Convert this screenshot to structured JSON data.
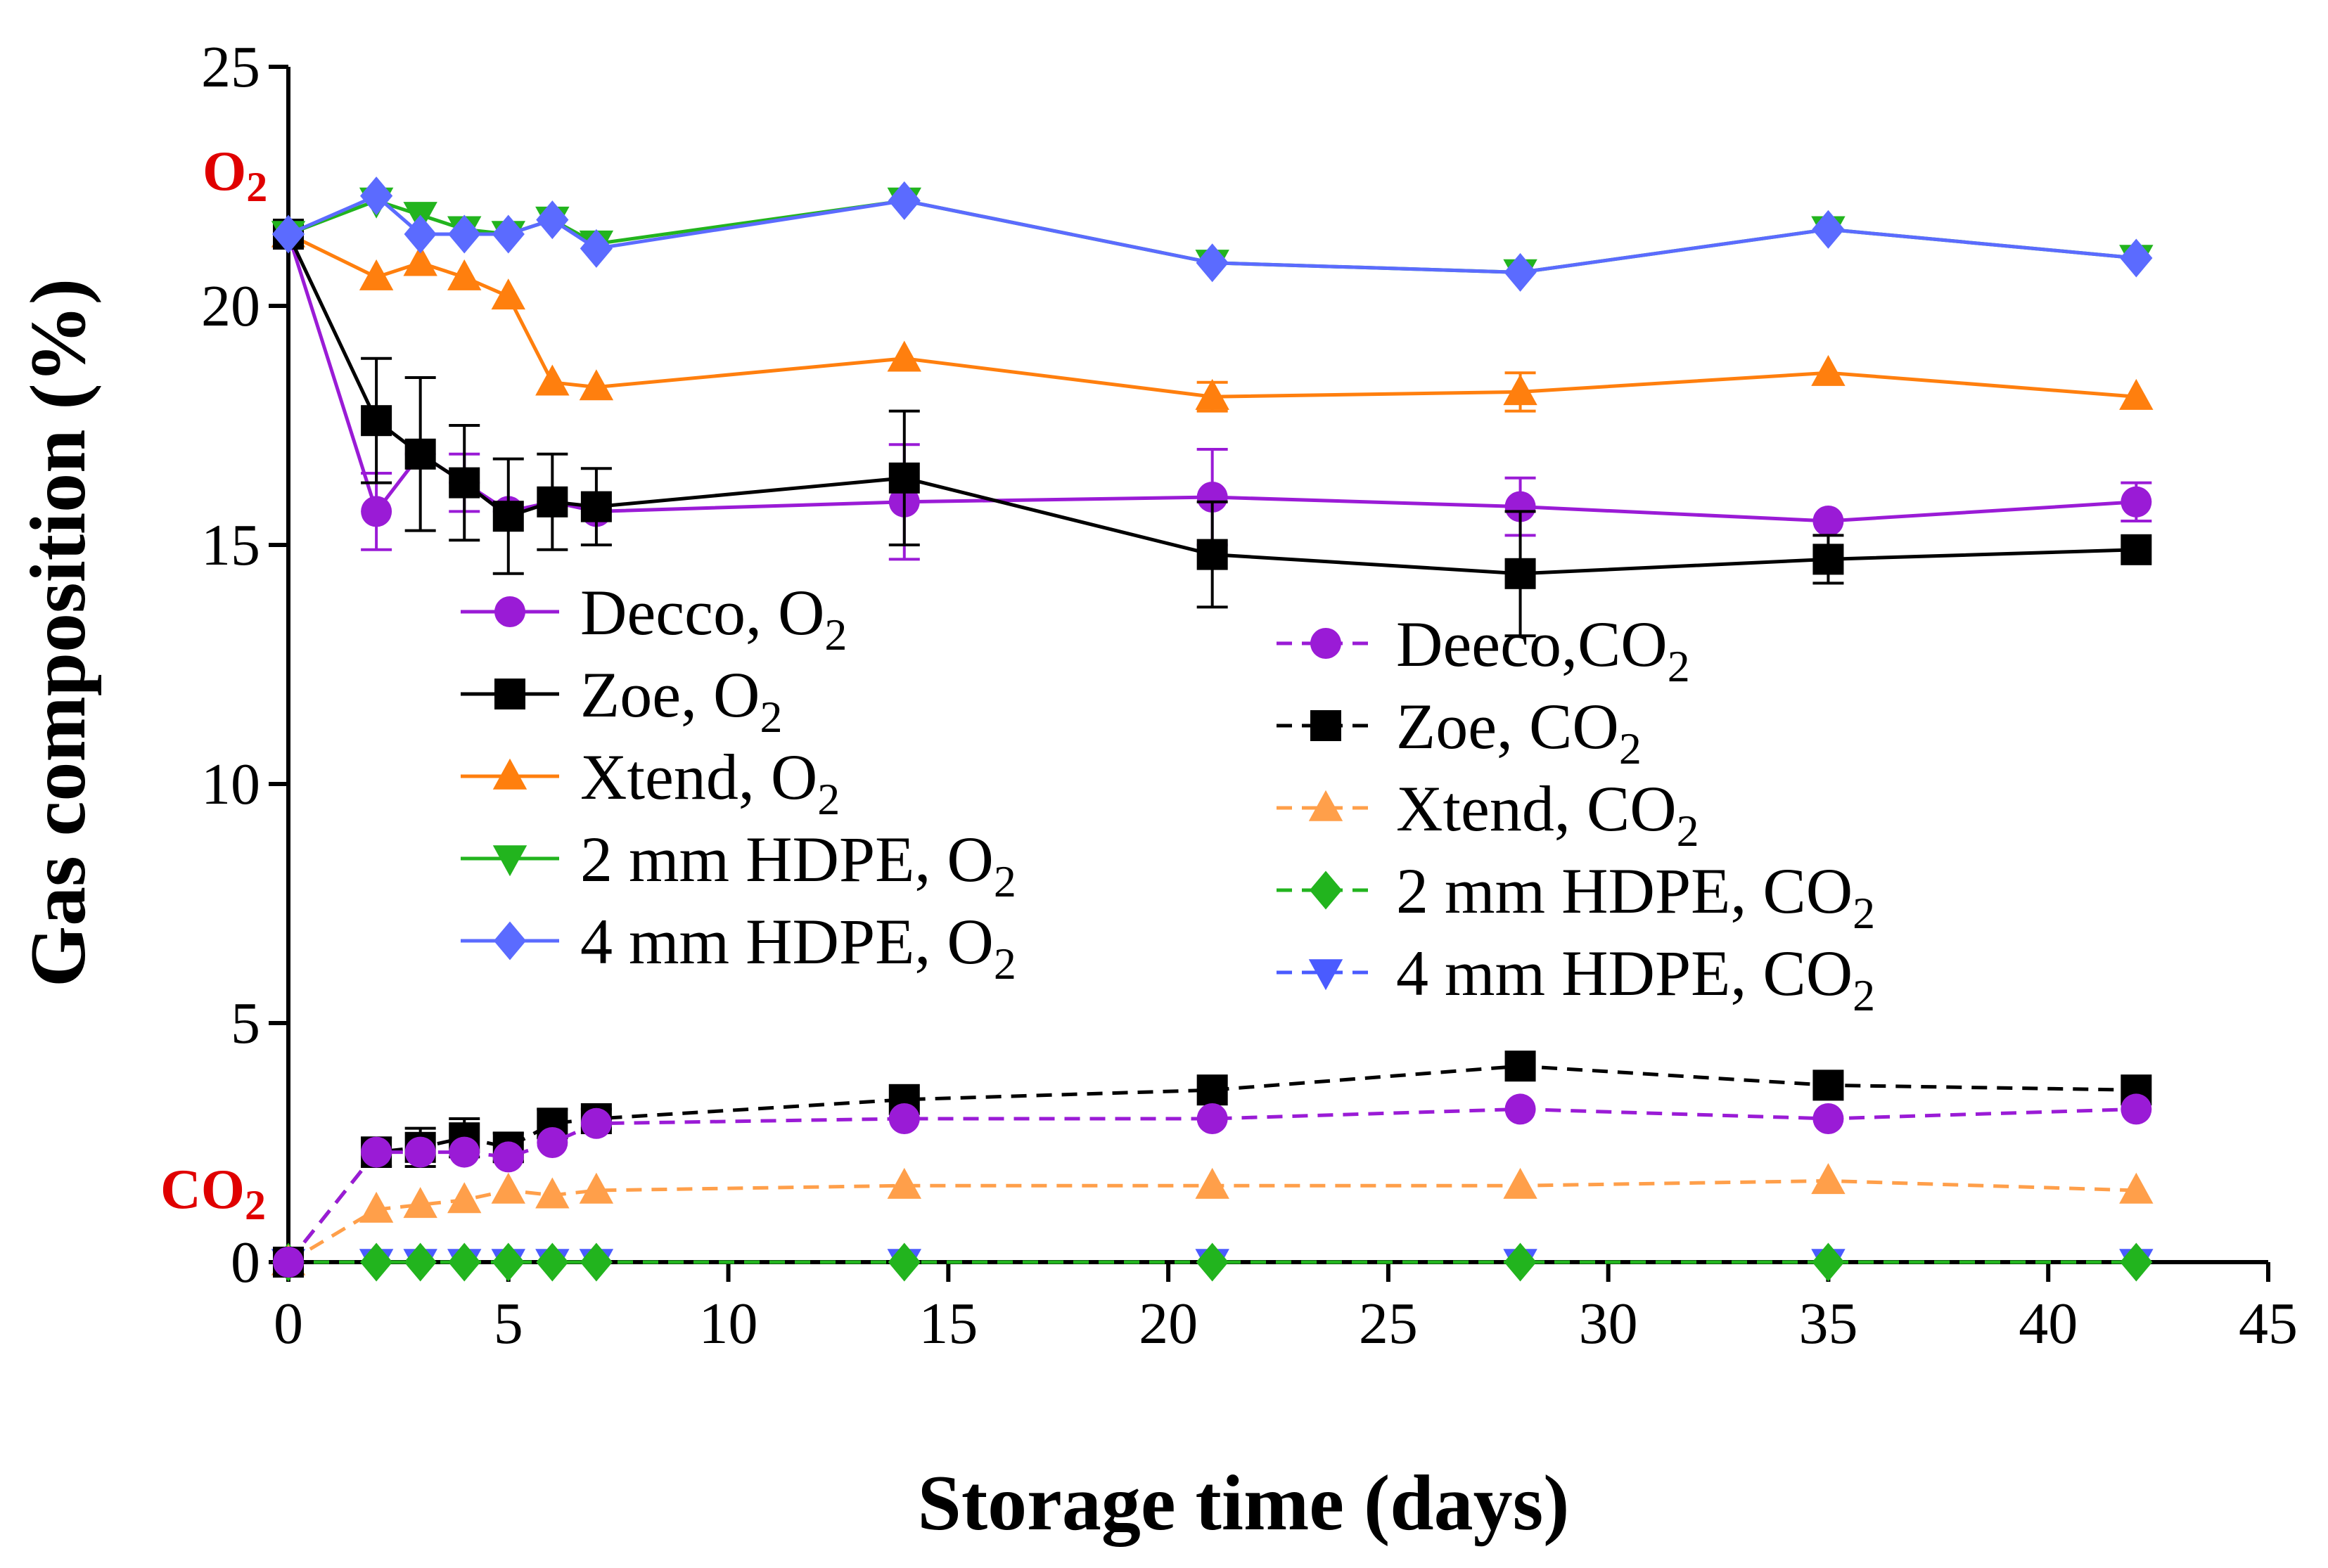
{
  "chart_data": {
    "type": "line",
    "xlabel": "Storage time (days)",
    "ylabel": "Gas composition (%)",
    "xlim": [
      0,
      45
    ],
    "ylim": [
      0,
      25
    ],
    "xticks": [
      0,
      5,
      10,
      15,
      20,
      25,
      30,
      35,
      40,
      45
    ],
    "yticks": [
      0,
      5,
      10,
      15,
      20,
      25
    ],
    "grid": false,
    "legend_position": "center",
    "annotations": [
      {
        "text": "O",
        "sub": "2",
        "color": "#e00000"
      },
      {
        "text": "CO",
        "sub": "2",
        "color": "#e00000"
      }
    ],
    "series": [
      {
        "name": "Decco, O",
        "sub": "2",
        "color": "#9a1bd6",
        "marker": "circle",
        "dashed": false,
        "x": [
          0,
          2,
          3,
          4,
          5,
          6,
          7,
          14,
          21,
          28,
          35,
          42
        ],
        "y": [
          21.5,
          15.7,
          16.9,
          16.3,
          15.7,
          15.9,
          15.7,
          15.9,
          16.0,
          15.8,
          15.5,
          15.9
        ],
        "err": [
          0,
          0.8,
          0,
          0.6,
          0,
          0,
          0,
          1.2,
          1.0,
          0.6,
          0,
          0.4
        ]
      },
      {
        "name": "Zoe, O",
        "sub": "2",
        "color": "#000000",
        "marker": "square",
        "dashed": false,
        "x": [
          0,
          2,
          3,
          4,
          5,
          6,
          7,
          14,
          21,
          28,
          35,
          42
        ],
        "y": [
          21.5,
          17.6,
          16.9,
          16.3,
          15.6,
          15.9,
          15.8,
          16.4,
          14.8,
          14.4,
          14.7,
          14.9
        ],
        "err": [
          0,
          1.3,
          1.6,
          1.2,
          1.2,
          1.0,
          0.8,
          1.4,
          1.1,
          1.3,
          0.5,
          0
        ]
      },
      {
        "name": "Xtend, O",
        "sub": "2",
        "color": "#ff7f0e",
        "marker": "triangle-up",
        "dashed": false,
        "x": [
          0,
          2,
          3,
          4,
          5,
          6,
          7,
          14,
          21,
          28,
          35,
          42
        ],
        "y": [
          21.5,
          20.6,
          20.9,
          20.6,
          20.2,
          18.4,
          18.3,
          18.9,
          18.1,
          18.2,
          18.6,
          18.1
        ],
        "err": [
          0,
          0,
          0,
          0,
          0,
          0,
          0,
          0,
          0.3,
          0.4,
          0,
          0
        ]
      },
      {
        "name": "2 mm HDPE, O",
        "sub": "2",
        "color": "#22b41e",
        "marker": "triangle-down",
        "dashed": false,
        "x": [
          0,
          2,
          3,
          4,
          5,
          6,
          7,
          14,
          21,
          28,
          35,
          42
        ],
        "y": [
          21.5,
          22.2,
          21.9,
          21.6,
          21.5,
          21.8,
          21.3,
          22.2,
          20.9,
          20.7,
          21.6,
          21.0
        ],
        "err": [
          0,
          0,
          0,
          0,
          0,
          0,
          0,
          0,
          0,
          0,
          0,
          0
        ]
      },
      {
        "name": "4 mm HDPE, O",
        "sub": "2",
        "color": "#5b6bff",
        "marker": "diamond",
        "dashed": false,
        "x": [
          0,
          2,
          3,
          4,
          5,
          6,
          7,
          14,
          21,
          28,
          35,
          42
        ],
        "y": [
          21.5,
          22.3,
          21.5,
          21.5,
          21.5,
          21.8,
          21.2,
          22.2,
          20.9,
          20.7,
          21.6,
          21.0
        ],
        "err": [
          0,
          0,
          0,
          0,
          0,
          0,
          0,
          0,
          0,
          0,
          0,
          0
        ]
      },
      {
        "name": "Deeco,CO",
        "sub": "2",
        "color": "#9a1bd6",
        "marker": "circle",
        "dashed": true,
        "x": [
          0,
          2,
          3,
          4,
          5,
          6,
          7,
          14,
          21,
          28,
          35,
          42
        ],
        "y": [
          0,
          2.3,
          2.3,
          2.3,
          2.2,
          2.5,
          2.9,
          3.0,
          3.0,
          3.2,
          3.0,
          3.2
        ],
        "err": [
          0,
          0,
          0,
          0,
          0,
          0,
          0,
          0,
          0,
          0,
          0,
          0
        ]
      },
      {
        "name": "Zoe, CO",
        "sub": "2",
        "color": "#000000",
        "marker": "square",
        "dashed": true,
        "x": [
          0,
          2,
          3,
          4,
          5,
          6,
          7,
          14,
          21,
          28,
          35,
          42
        ],
        "y": [
          0,
          2.3,
          2.4,
          2.6,
          2.4,
          2.9,
          3.0,
          3.4,
          3.6,
          4.1,
          3.7,
          3.6
        ],
        "err": [
          0,
          0.3,
          0.4,
          0.4,
          0.3,
          0.3,
          0.2,
          0,
          0,
          0,
          0,
          0
        ]
      },
      {
        "name": "Xtend, CO",
        "sub": "2",
        "color": "#ff9f4a",
        "marker": "triangle-up",
        "dashed": true,
        "x": [
          0,
          2,
          3,
          4,
          5,
          6,
          7,
          14,
          21,
          28,
          35,
          42
        ],
        "y": [
          0,
          1.1,
          1.2,
          1.3,
          1.5,
          1.4,
          1.5,
          1.6,
          1.6,
          1.6,
          1.7,
          1.5
        ],
        "err": [
          0,
          0,
          0,
          0,
          0,
          0,
          0,
          0,
          0,
          0,
          0,
          0
        ]
      },
      {
        "name": "2 mm HDPE, CO",
        "sub": "2",
        "color": "#22b41e",
        "marker": "diamond",
        "dashed": true,
        "x": [
          0,
          2,
          3,
          4,
          5,
          6,
          7,
          14,
          21,
          28,
          35,
          42
        ],
        "y": [
          0,
          0,
          0,
          0,
          0,
          0,
          0,
          0,
          0,
          0,
          0,
          0
        ],
        "err": [
          0,
          0,
          0,
          0,
          0,
          0,
          0,
          0,
          0,
          0,
          0,
          0
        ]
      },
      {
        "name": "4 mm HDPE, CO",
        "sub": "2",
        "color": "#4a5bff",
        "marker": "triangle-down",
        "dashed": true,
        "x": [
          0,
          2,
          3,
          4,
          5,
          6,
          7,
          14,
          21,
          28,
          35,
          42
        ],
        "y": [
          0,
          0,
          0,
          0,
          0,
          0,
          0,
          0,
          0,
          0,
          0,
          0
        ],
        "err": [
          0,
          0,
          0,
          0,
          0,
          0,
          0,
          0,
          0,
          0,
          0,
          0
        ]
      }
    ]
  }
}
